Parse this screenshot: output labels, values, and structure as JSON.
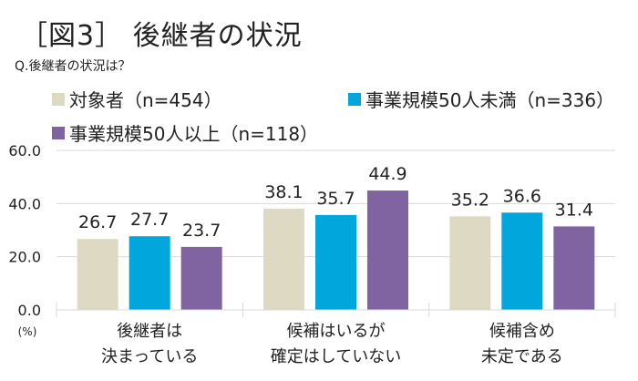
{
  "chart_data": {
    "type": "bar",
    "title": "［図3］ 後継者の状況",
    "subtitle": "Q.後継者の状況は？",
    "ylabel": "(%)",
    "ylim": [
      0,
      60
    ],
    "yticks": [
      "0.0",
      "20.0",
      "40.0",
      "60.0"
    ],
    "grid": true,
    "legend_position": "top",
    "categories": [
      [
        "後継者は",
        "決まっている"
      ],
      [
        "候補はいるが",
        "確定はしていない"
      ],
      [
        "候補含め",
        "未定である"
      ]
    ],
    "series": [
      {
        "name": "対象者（n=454）",
        "color": "#ddd9c3",
        "values": [
          26.7,
          38.1,
          35.2
        ]
      },
      {
        "name": "事業規模50人未満（n=336）",
        "color": "#00a6dc",
        "values": [
          27.7,
          35.7,
          36.6
        ]
      },
      {
        "name": "事業規模50人以上（n=118）",
        "color": "#8064a2",
        "values": [
          23.7,
          44.9,
          31.4
        ]
      }
    ]
  }
}
